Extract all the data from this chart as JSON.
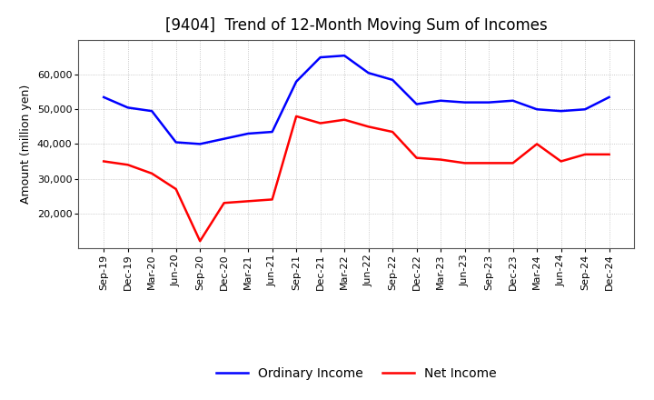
{
  "title": "[9404]  Trend of 12-Month Moving Sum of Incomes",
  "ylabel": "Amount (million yen)",
  "x_labels": [
    "Sep-19",
    "Dec-19",
    "Mar-20",
    "Jun-20",
    "Sep-20",
    "Dec-20",
    "Mar-21",
    "Jun-21",
    "Sep-21",
    "Dec-21",
    "Mar-22",
    "Jun-22",
    "Sep-22",
    "Dec-22",
    "Mar-23",
    "Jun-23",
    "Sep-23",
    "Dec-23",
    "Mar-24",
    "Jun-24",
    "Sep-24",
    "Dec-24"
  ],
  "ordinary_income": [
    53500,
    50500,
    49500,
    40500,
    40000,
    41500,
    43000,
    43500,
    58000,
    65000,
    65500,
    60500,
    58500,
    51500,
    52500,
    52000,
    52000,
    52500,
    50000,
    49500,
    50000,
    53500
  ],
  "net_income": [
    35000,
    34000,
    31500,
    27000,
    12000,
    23000,
    23500,
    24000,
    48000,
    46000,
    47000,
    45000,
    43500,
    36000,
    35500,
    34500,
    34500,
    34500,
    40000,
    35000,
    37000,
    37000
  ],
  "ordinary_color": "#0000FF",
  "net_color": "#FF0000",
  "ylim_min": 10000,
  "ylim_max": 70000,
  "yticks": [
    20000,
    30000,
    40000,
    50000,
    60000
  ],
  "background_color": "#FFFFFF",
  "grid_color": "#BBBBBB",
  "title_fontsize": 12,
  "axis_fontsize": 9,
  "tick_fontsize": 8,
  "legend_labels": [
    "Ordinary Income",
    "Net Income"
  ]
}
